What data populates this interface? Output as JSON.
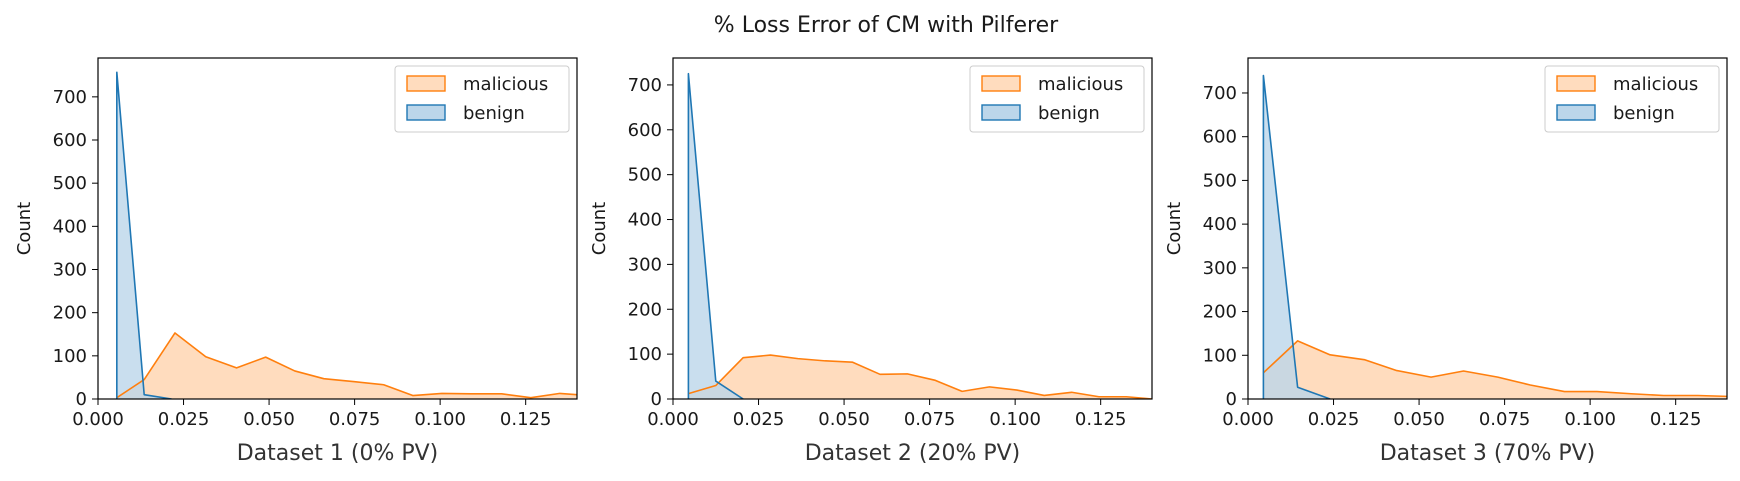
{
  "figure": {
    "title": "% Loss Error of CM with Pilferer"
  },
  "chart_data": [
    {
      "type": "area",
      "xlabel": "Dataset 1 (0% PV)",
      "ylabel": "Count",
      "xlim": [
        0.0,
        0.14
      ],
      "ylim": [
        0,
        790
      ],
      "xticks": [
        0.0,
        0.025,
        0.05,
        0.075,
        0.1,
        0.125
      ],
      "xtick_labels": [
        "0.000",
        "0.025",
        "0.050",
        "0.075",
        "0.100",
        "0.125"
      ],
      "yticks": [
        0,
        100,
        200,
        300,
        400,
        500,
        600,
        700
      ],
      "legend": "top-right",
      "series": [
        {
          "name": "malicious",
          "color": "#ff7f0e",
          "fill": "#ffdcbe",
          "x": [
            0.0055,
            0.0135,
            0.0225,
            0.0315,
            0.0405,
            0.049,
            0.0575,
            0.066,
            0.075,
            0.0835,
            0.092,
            0.1005,
            0.109,
            0.118,
            0.1265,
            0.135,
            0.14
          ],
          "y": [
            3,
            45,
            153,
            98,
            72,
            97,
            65,
            47,
            40,
            33,
            8,
            13,
            12,
            12,
            3,
            13,
            10
          ]
        },
        {
          "name": "benign",
          "color": "#1f77b4",
          "fill": "#bcd6ea",
          "x": [
            0.0055,
            0.0055,
            0.0135,
            0.0215
          ],
          "y": [
            0,
            757,
            10,
            0
          ]
        }
      ]
    },
    {
      "type": "area",
      "xlabel": "Dataset 2 (20% PV)",
      "ylabel": "Count",
      "xlim": [
        0.0,
        0.14
      ],
      "ylim": [
        0,
        760
      ],
      "xticks": [
        0.0,
        0.025,
        0.05,
        0.075,
        0.1,
        0.125
      ],
      "xtick_labels": [
        "0.000",
        "0.025",
        "0.050",
        "0.075",
        "0.100",
        "0.125"
      ],
      "yticks": [
        0,
        100,
        200,
        300,
        400,
        500,
        600,
        700
      ],
      "legend": "top-right",
      "series": [
        {
          "name": "malicious",
          "color": "#ff7f0e",
          "fill": "#ffdcbe",
          "x": [
            0.0045,
            0.0125,
            0.0205,
            0.0285,
            0.0365,
            0.0445,
            0.0525,
            0.0605,
            0.0685,
            0.0765,
            0.0845,
            0.0925,
            0.1005,
            0.1085,
            0.1165,
            0.1245,
            0.1325,
            0.14
          ],
          "y": [
            12,
            30,
            92,
            98,
            90,
            85,
            82,
            55,
            56,
            42,
            17,
            27,
            20,
            8,
            15,
            5,
            5,
            0
          ]
        },
        {
          "name": "benign",
          "color": "#1f77b4",
          "fill": "#bcd6ea",
          "x": [
            0.0045,
            0.0045,
            0.0125,
            0.0205
          ],
          "y": [
            0,
            725,
            40,
            0
          ]
        }
      ]
    },
    {
      "type": "area",
      "xlabel": "Dataset 3 (70% PV)",
      "ylabel": "Count",
      "xlim": [
        0.0,
        0.14
      ],
      "ylim": [
        0,
        780
      ],
      "xticks": [
        0.0,
        0.025,
        0.05,
        0.075,
        0.1,
        0.125
      ],
      "xtick_labels": [
        "0.000",
        "0.025",
        "0.050",
        "0.075",
        "0.100",
        "0.125"
      ],
      "yticks": [
        0,
        100,
        200,
        300,
        400,
        500,
        600,
        700
      ],
      "legend": "top-right",
      "series": [
        {
          "name": "malicious",
          "color": "#ff7f0e",
          "fill": "#ffdcbe",
          "x": [
            0.0045,
            0.0145,
            0.024,
            0.034,
            0.0435,
            0.0535,
            0.063,
            0.073,
            0.0825,
            0.0925,
            0.102,
            0.112,
            0.1215,
            0.1315,
            0.14
          ],
          "y": [
            60,
            133,
            101,
            90,
            65,
            50,
            64,
            50,
            32,
            17,
            17,
            12,
            8,
            8,
            6
          ]
        },
        {
          "name": "benign",
          "color": "#1f77b4",
          "fill": "#bcd6ea",
          "x": [
            0.0045,
            0.0045,
            0.0145,
            0.024
          ],
          "y": [
            0,
            740,
            27,
            0
          ]
        }
      ]
    }
  ]
}
